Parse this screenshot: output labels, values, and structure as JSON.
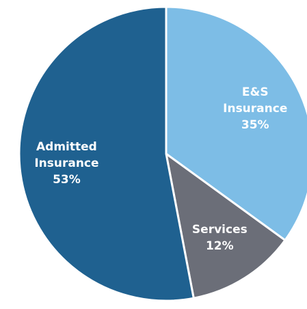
{
  "chart_data": {
    "type": "pie",
    "categories": [
      "E&S Insurance",
      "Services",
      "Admitted Insurance"
    ],
    "values": [
      35,
      12,
      53
    ],
    "value_labels": [
      "35%",
      "12%",
      "53%"
    ],
    "colors": [
      "#7dbde6",
      "#6b6e78",
      "#1f6190"
    ]
  }
}
